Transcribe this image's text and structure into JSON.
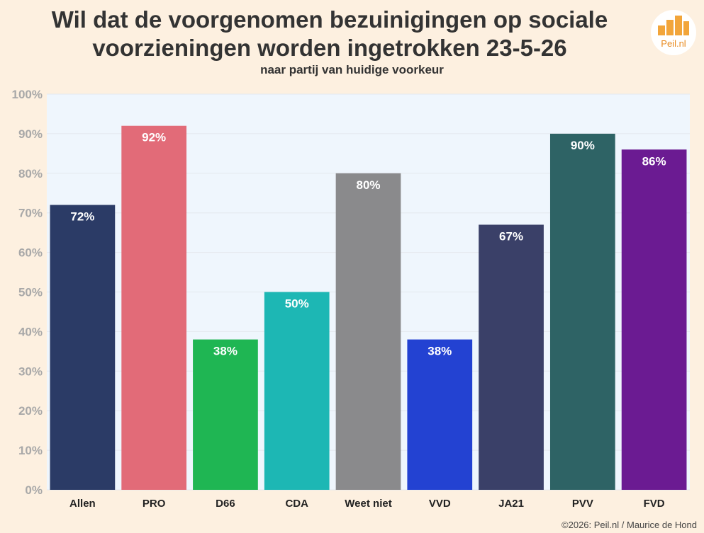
{
  "title": "Wil dat de voorgenomen bezuinigingen op sociale voorzieningen worden ingetrokken 23-5-26",
  "subtitle": "naar partij van huidige voorkeur",
  "logo_text": "Peil.nl",
  "footer": "©2026: Peil.nl / Maurice de Hond",
  "colors": {
    "background": "#fdf0e0",
    "plot_background": "#eff6fd",
    "axis_text": "#a8a8a8",
    "logo": "#f2a53a"
  },
  "chart_data": {
    "type": "bar",
    "categories": [
      "Allen",
      "PRO",
      "D66",
      "CDA",
      "Weet niet",
      "VVD",
      "JA21",
      "PVV",
      "FVD"
    ],
    "values": [
      72,
      92,
      38,
      50,
      80,
      38,
      67,
      90,
      86
    ],
    "data_labels": [
      "72%",
      "92%",
      "38%",
      "50%",
      "80%",
      "38%",
      "67%",
      "90%",
      "86%"
    ],
    "bar_colors": [
      "#2b3b66",
      "#e26b78",
      "#1fb653",
      "#1db7b4",
      "#8a8a8c",
      "#2342d2",
      "#3a4068",
      "#2e6365",
      "#6b1b92"
    ],
    "ylim": [
      0,
      100
    ],
    "yticks": [
      "0%",
      "10%",
      "20%",
      "30%",
      "40%",
      "50%",
      "60%",
      "70%",
      "80%",
      "90%",
      "100%"
    ],
    "grid": true,
    "legend": "none",
    "xlabel": "",
    "ylabel": ""
  }
}
